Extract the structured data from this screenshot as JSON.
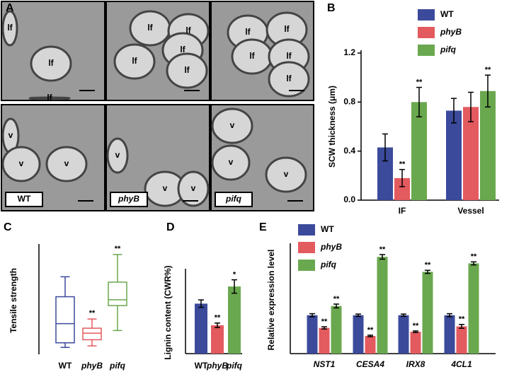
{
  "panel_a": {
    "label": "A",
    "images": [
      {
        "labels": [
          "lf",
          "lf",
          "lf"
        ]
      },
      {
        "labels": [
          "lf",
          "lf",
          "lf",
          "lf",
          "lf"
        ]
      },
      {
        "labels": [
          "lf",
          "lf",
          "lf",
          "lf",
          "lf"
        ]
      },
      {
        "labels": [
          "v",
          "v",
          "v"
        ],
        "genotype": "WT"
      },
      {
        "labels": [
          "v",
          "v",
          "v"
        ],
        "genotype": "phyB"
      },
      {
        "labels": [
          "v",
          "v",
          "v"
        ],
        "genotype": "pifq"
      }
    ]
  },
  "chart_data": [
    {
      "label": "B",
      "type": "bar",
      "ylabel": "SCW thickness (μm)",
      "categories": [
        "IF",
        "Vessel"
      ],
      "series": [
        {
          "name": "WT",
          "color": "#3b4a9b",
          "values": [
            0.43,
            0.73
          ],
          "errors": [
            0.11,
            0.1
          ],
          "significance": [
            null,
            null
          ]
        },
        {
          "name": "phyB",
          "color": "#e35a5f",
          "values": [
            0.18,
            0.76
          ],
          "errors": [
            0.07,
            0.12
          ],
          "significance": [
            "**",
            null
          ]
        },
        {
          "name": "pifq",
          "color": "#6aa84f",
          "values": [
            0.8,
            0.89
          ],
          "errors": [
            0.12,
            0.13
          ],
          "significance": [
            "**",
            "**"
          ]
        }
      ],
      "ylim": [
        0,
        1.2
      ],
      "yticks": [
        {
          "value": 0,
          "label": "0.0"
        },
        0.4,
        0.8,
        1.2
      ]
    },
    {
      "label": "C",
      "type": "box",
      "ylabel": "Tensile strength",
      "categories": [
        "WT",
        "phyB",
        "pifq"
      ],
      "colors": [
        "#3b4a9b",
        "#e35a5f",
        "#6aa84f"
      ],
      "boxes": [
        {
          "min": 0.18,
          "q1": 0.3,
          "median": 0.8,
          "q3": 1.5,
          "max": 2.02
        },
        {
          "min": 0.22,
          "q1": 0.38,
          "median": 0.55,
          "q3": 0.68,
          "max": 0.92
        },
        {
          "min": 0.62,
          "q1": 1.27,
          "median": 1.42,
          "q3": 1.88,
          "max": 2.6
        }
      ],
      "significance": [
        null,
        "**",
        "**"
      ],
      "ylim": [
        0,
        2.8
      ]
    },
    {
      "label": "D",
      "type": "bar",
      "ylabel": "Lignin content (CWR%)",
      "categories": [
        "WT",
        "phyB",
        "pifq"
      ],
      "colors": [
        "#3b4a9b",
        "#e35a5f",
        "#6aa84f"
      ],
      "values": [
        6.7,
        3.8,
        9.0
      ],
      "errors": [
        0.5,
        0.3,
        0.9
      ],
      "significance": [
        null,
        "**",
        "*"
      ],
      "ylim": [
        0,
        11
      ]
    },
    {
      "label": "E",
      "type": "bar",
      "ylabel": "Relative expression level",
      "categories": [
        "NST1",
        "CESA4",
        "IRX8",
        "4CL1"
      ],
      "series": [
        {
          "name": "WT",
          "color": "#3b4a9b",
          "values": [
            1.0,
            1.0,
            1.0,
            1.0
          ],
          "errors": [
            0.04,
            0.03,
            0.03,
            0.04
          ],
          "significance": [
            null,
            null,
            null,
            null
          ]
        },
        {
          "name": "phyB",
          "color": "#e35a5f",
          "values": [
            0.67,
            0.46,
            0.57,
            0.71
          ],
          "errors": [
            0.03,
            0.02,
            0.02,
            0.05
          ],
          "significance": [
            "**",
            "**",
            "**",
            "**"
          ]
        },
        {
          "name": "pifq",
          "color": "#6aa84f",
          "values": [
            1.24,
            2.52,
            2.13,
            2.35
          ],
          "errors": [
            0.05,
            0.06,
            0.04,
            0.04
          ],
          "significance": [
            "**",
            "**",
            "**",
            "**"
          ]
        }
      ],
      "ylim": [
        0,
        2.8
      ]
    }
  ]
}
